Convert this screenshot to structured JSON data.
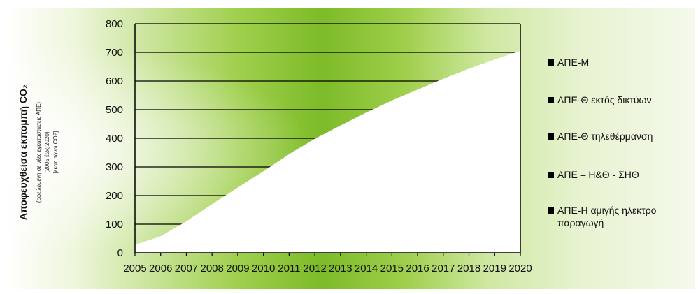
{
  "chart_data": {
    "type": "area",
    "title": "",
    "ylabel": "Αποφευχθείσα εκπομπή CO₂",
    "ylabel_sub1": "(οφειλόμενη σε νέες εγκαταστάσεις ΑΠΕ)",
    "ylabel_sub2": "(2005 έως 2020)",
    "ylabel_sub3": "[εκατ. τόνοι CO2]",
    "xlabel": "",
    "ylim": [
      0,
      800
    ],
    "yticks": [
      0,
      100,
      200,
      300,
      400,
      500,
      600,
      700,
      800
    ],
    "x": [
      "2005",
      "2006",
      "2007",
      "2008",
      "2009",
      "2010",
      "2011",
      "2012",
      "2013",
      "2014",
      "2015",
      "2016",
      "2017",
      "2018",
      "2019",
      "2020"
    ],
    "series_total": [
      28,
      58,
      110,
      170,
      228,
      285,
      345,
      398,
      445,
      490,
      532,
      570,
      608,
      643,
      675,
      705
    ],
    "grid": true,
    "legend_position": "right",
    "series": [
      {
        "name": "ΑΠΕ-Μ"
      },
      {
        "name": "ΑΠΕ-Θ εκτός δικτύων"
      },
      {
        "name": "ΑΠΕ-Θ τηλεθέρμανση"
      },
      {
        "name": "ΑΠΕ – Η&Θ - ΣΗΘ"
      },
      {
        "name": "ΑΠΕ-Η αμιγής ηλεκτρο παραγωγή"
      }
    ],
    "colors": {
      "area": "#ffffff",
      "grid": "#000000",
      "legend_marker": "#000000"
    }
  }
}
